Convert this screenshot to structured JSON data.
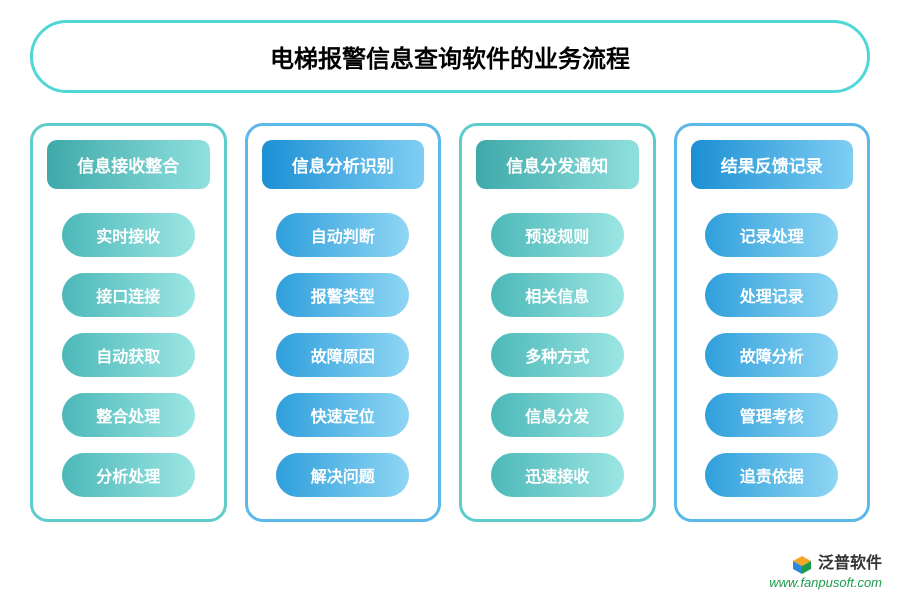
{
  "title": "电梯报警信息查询软件的业务流程",
  "title_border_color": "#4fd6d6",
  "columns": [
    {
      "header": "信息接收整合",
      "border_color": "#5fcccc",
      "header_gradient": [
        "#3ea9a9",
        "#8fe0de"
      ],
      "item_gradient": [
        "#4cb8b8",
        "#9ce6e4"
      ],
      "items": [
        "实时接收",
        "接口连接",
        "自动获取",
        "整合处理",
        "分析处理"
      ]
    },
    {
      "header": "信息分析识别",
      "border_color": "#5bb8e8",
      "header_gradient": [
        "#1b8fd4",
        "#7fcef2"
      ],
      "item_gradient": [
        "#2f9fdc",
        "#8fd6f3"
      ],
      "items": [
        "自动判断",
        "报警类型",
        "故障原因",
        "快速定位",
        "解决问题"
      ]
    },
    {
      "header": "信息分发通知",
      "border_color": "#5fcccc",
      "header_gradient": [
        "#3ea9a9",
        "#8fe0de"
      ],
      "item_gradient": [
        "#4cb8b8",
        "#9ce6e4"
      ],
      "items": [
        "预设规则",
        "相关信息",
        "多种方式",
        "信息分发",
        "迅速接收"
      ]
    },
    {
      "header": "结果反馈记录",
      "border_color": "#5bb8e8",
      "header_gradient": [
        "#1b8fd4",
        "#7fcef2"
      ],
      "item_gradient": [
        "#2f9fdc",
        "#8fd6f3"
      ],
      "items": [
        "记录处理",
        "处理记录",
        "故障分析",
        "管理考核",
        "追责依据"
      ]
    }
  ],
  "watermark": {
    "brand": "泛普软件",
    "url": "www.fanpusoft.com",
    "brand_color": "#333333",
    "url_color": "#1a9c4a",
    "cube_colors": {
      "top": "#f5a623",
      "left": "#2e86de",
      "right": "#1a9c4a"
    }
  }
}
